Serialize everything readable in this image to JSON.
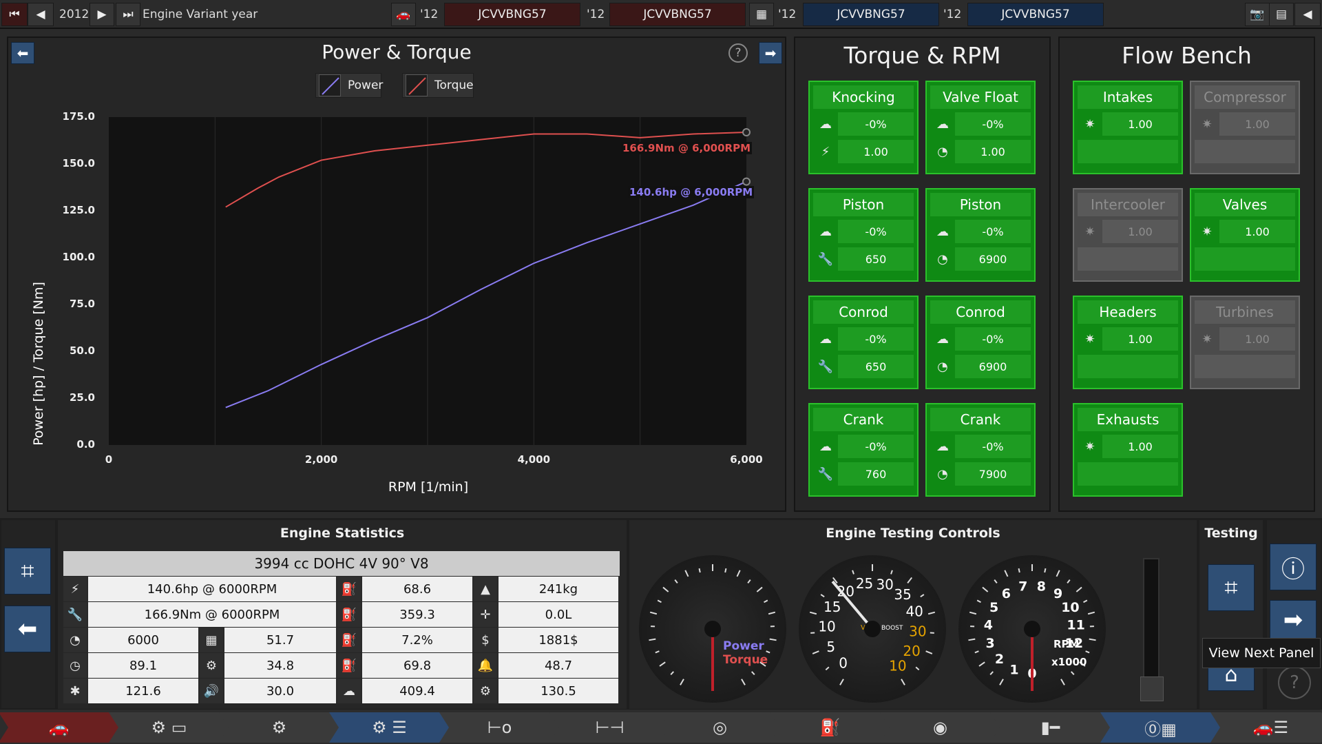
{
  "topbar": {
    "year": "2012",
    "variant_label": "Engine Variant year",
    "slots": [
      {
        "year": "'12",
        "name": "JCVVBNG57"
      },
      {
        "year": "'12",
        "name": "JCVVBNG57"
      },
      {
        "year": "'12",
        "name": "JCVVBNG57"
      },
      {
        "year": "'12",
        "name": "JCVVBNG57"
      }
    ]
  },
  "power_panel": {
    "title": "Power & Torque",
    "help": "?",
    "legend": [
      "Power",
      "Torque"
    ]
  },
  "chart_data": {
    "type": "line",
    "xlabel": "RPM [1/min]",
    "ylabel": "Power [hp] / Torque [Nm]",
    "xlim": [
      0,
      6000
    ],
    "ylim": [
      0,
      175
    ],
    "x_ticks": [
      "0",
      "2,000",
      "4,000",
      "6,000"
    ],
    "y_ticks": [
      "0.0",
      "25.0",
      "50.0",
      "75.0",
      "100.0",
      "125.0",
      "150.0",
      "175.0"
    ],
    "grid": true,
    "legend_position": "top",
    "series": [
      {
        "name": "Power",
        "color": "#8a7cf2",
        "x": [
          1100,
          1500,
          2000,
          2500,
          3000,
          3500,
          4000,
          4500,
          5000,
          5500,
          6000
        ],
        "y": [
          20,
          29,
          43,
          56,
          68,
          83,
          97,
          108,
          118,
          128,
          140.6
        ]
      },
      {
        "name": "Torque",
        "color": "#e0504f",
        "x": [
          1100,
          1400,
          1600,
          2000,
          2500,
          3000,
          3500,
          4000,
          4500,
          5000,
          5500,
          6000
        ],
        "y": [
          127,
          137,
          143,
          152,
          157,
          160,
          163,
          166,
          166,
          164,
          166,
          166.9
        ]
      }
    ],
    "annotations": [
      {
        "text": "166.9Nm @ 6,000RPM",
        "color": "#e0504f"
      },
      {
        "text": "140.6hp @ 6,000RPM",
        "color": "#8a7cf2"
      }
    ]
  },
  "torque_panel": {
    "title": "Torque & RPM",
    "cards": [
      {
        "title": "Knocking",
        "v1": "-0%",
        "v2": "1.00"
      },
      {
        "title": "Valve Float",
        "v1": "-0%",
        "v2": "1.00"
      },
      {
        "title": "Piston",
        "v1": "-0%",
        "v2": "650"
      },
      {
        "title": "Piston",
        "v1": "-0%",
        "v2": "6900"
      },
      {
        "title": "Conrod",
        "v1": "-0%",
        "v2": "650"
      },
      {
        "title": "Conrod",
        "v1": "-0%",
        "v2": "6900"
      },
      {
        "title": "Crank",
        "v1": "-0%",
        "v2": "760"
      },
      {
        "title": "Crank",
        "v1": "-0%",
        "v2": "7900"
      }
    ]
  },
  "flow_panel": {
    "title": "Flow Bench",
    "cards": [
      {
        "title": "Intakes",
        "v1": "1.00"
      },
      {
        "title": "Compressor",
        "v1": "1.00"
      },
      {
        "title": "Intercooler",
        "v1": "1.00"
      },
      {
        "title": "Valves",
        "v1": "1.00"
      },
      {
        "title": "Headers",
        "v1": "1.00"
      },
      {
        "title": "Turbines",
        "v1": "1.00"
      },
      {
        "title": "Exhausts",
        "v1": "1.00"
      }
    ]
  },
  "stats": {
    "title": "Engine Statistics",
    "engine": "3994 cc DOHC 4V 90° V8",
    "rows": [
      [
        "140.6hp @ 6000RPM",
        "68.6",
        "241kg"
      ],
      [
        "166.9Nm @ 6000RPM",
        "359.3",
        "0.0L"
      ],
      [
        "6000",
        "51.7",
        "7.2%",
        "1881$"
      ],
      [
        "89.1",
        "34.8",
        "69.8",
        "48.7"
      ],
      [
        "121.6",
        "30.0",
        "409.4",
        "130.5"
      ]
    ]
  },
  "controls": {
    "title": "Engine Testing Controls",
    "gauge1": [
      "Power",
      "Torque"
    ],
    "gauge2": {
      "vac": "VAC\nIn. Hg",
      "boost": "BOOST\nPSI",
      "nums": [
        "0",
        "5",
        "10",
        "15",
        "20",
        "25",
        "30",
        "35",
        "40",
        "30",
        "20",
        "10"
      ]
    },
    "gauge3": {
      "label": "RPM",
      "mult": "x1000",
      "nums": [
        "0",
        "1",
        "2",
        "3",
        "4",
        "5",
        "6",
        "7",
        "8",
        "9",
        "10",
        "11",
        "12"
      ]
    }
  },
  "testing": {
    "title": "Testing",
    "tooltip": "View Next Panel"
  },
  "colors": {
    "accent": "#2f4f75",
    "green": "#0f8a14",
    "green_border": "#2bc12b"
  }
}
